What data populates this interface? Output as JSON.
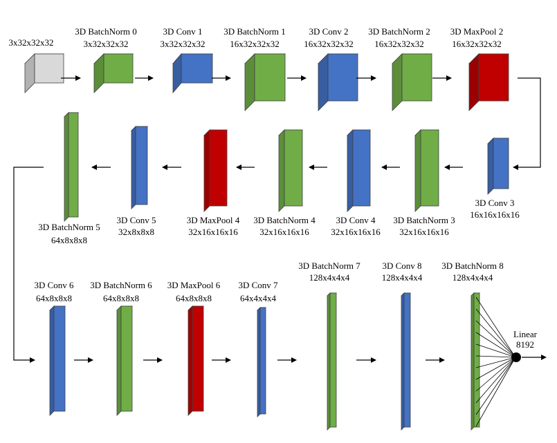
{
  "colors": {
    "input": "#d9d9d9",
    "batchnorm": "#70ad47",
    "conv": "#4472c4",
    "maxpool": "#c00000",
    "edge": "#3f3f3f"
  },
  "layers": [
    {
      "kind": "input",
      "name": "",
      "dims": "3x32x32x32"
    },
    {
      "kind": "batchnorm",
      "name": "3D BatchNorm 0",
      "dims": "3x32x32x32"
    },
    {
      "kind": "conv",
      "name": "3D Conv 1",
      "dims": "3x32x32x32"
    },
    {
      "kind": "batchnorm",
      "name": "3D BatchNorm 1",
      "dims": "16x32x32x32"
    },
    {
      "kind": "conv",
      "name": "3D Conv 2",
      "dims": "16x32x32x32"
    },
    {
      "kind": "batchnorm",
      "name": "3D BatchNorm 2",
      "dims": "16x32x32x32"
    },
    {
      "kind": "maxpool",
      "name": "3D MaxPool 2",
      "dims": "16x32x32x32"
    },
    {
      "kind": "conv",
      "name": "3D Conv 3",
      "dims": "16x16x16x16"
    },
    {
      "kind": "batchnorm",
      "name": "3D BatchNorm 3",
      "dims": "32x16x16x16"
    },
    {
      "kind": "conv",
      "name": "3D Conv 4",
      "dims": "32x16x16x16"
    },
    {
      "kind": "batchnorm",
      "name": "3D BatchNorm 4",
      "dims": "32x16x16x16"
    },
    {
      "kind": "maxpool",
      "name": "3D MaxPool 4",
      "dims": "32x16x16x16"
    },
    {
      "kind": "conv",
      "name": "3D Conv 5",
      "dims": "32x8x8x8"
    },
    {
      "kind": "batchnorm",
      "name": "3D BatchNorm 5",
      "dims": "64x8x8x8"
    },
    {
      "kind": "conv",
      "name": "3D Conv 6",
      "dims": "64x8x8x8"
    },
    {
      "kind": "batchnorm",
      "name": "3D BatchNorm 6",
      "dims": "64x8x8x8"
    },
    {
      "kind": "maxpool",
      "name": "3D MaxPool 6",
      "dims": "64x8x8x8"
    },
    {
      "kind": "conv",
      "name": "3D Conv 7",
      "dims": "64x4x4x4"
    },
    {
      "kind": "batchnorm",
      "name": "3D BatchNorm 7",
      "dims": "128x4x4x4"
    },
    {
      "kind": "conv",
      "name": "3D Conv 8",
      "dims": "128x4x4x4"
    },
    {
      "kind": "batchnorm",
      "name": "3D BatchNorm 8",
      "dims": "128x4x4x4"
    }
  ],
  "output": {
    "name": "Linear",
    "dims": "8192"
  }
}
